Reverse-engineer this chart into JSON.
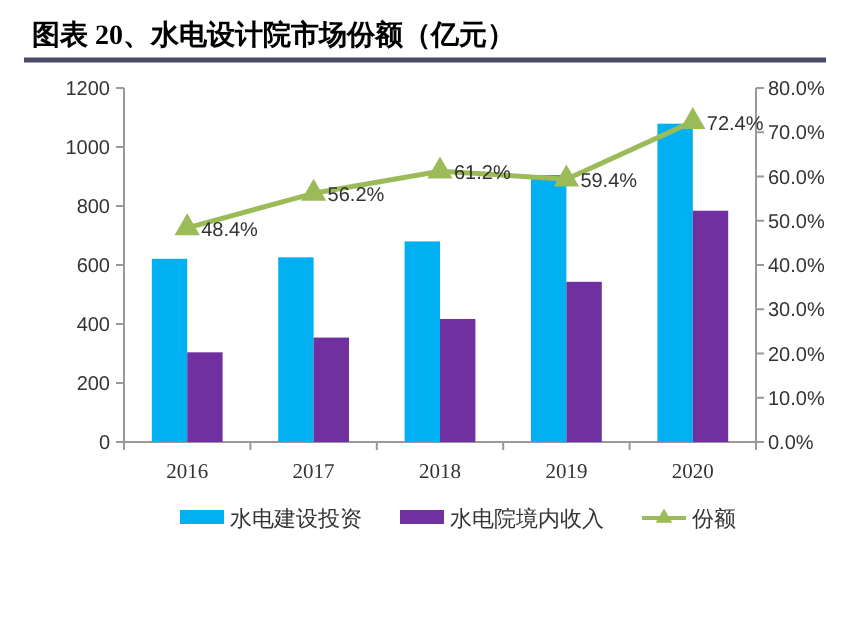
{
  "chart_data": {
    "type": "bar",
    "title": "图表 20、水电设计院市场份额（亿元）",
    "categories": [
      "2016",
      "2017",
      "2018",
      "2019",
      "2020"
    ],
    "series": [
      {
        "name": "水电建设投资",
        "color": "#00b0f0",
        "values": [
          621,
          626,
          680,
          905,
          1079
        ]
      },
      {
        "name": "水电院境内收入",
        "color": "#7030a0",
        "values": [
          304,
          354,
          417,
          543,
          784
        ]
      },
      {
        "name": "份额",
        "type": "line",
        "axis": "y2",
        "color": "#9bbb59",
        "marker": "triangle",
        "values": [
          48.4,
          56.2,
          61.2,
          59.4,
          72.4
        ],
        "value_labels": [
          "48.4%",
          "56.2%",
          "61.2%",
          "59.4%",
          "72.4%"
        ]
      }
    ],
    "ylim": [
      0,
      1200
    ],
    "yticks": [
      0,
      200,
      400,
      600,
      800,
      1000,
      1200
    ],
    "y2lim": [
      0,
      80
    ],
    "y2ticks": [
      {
        "value": 0,
        "label": "0.0%"
      },
      {
        "value": 10,
        "label": "10.0%"
      },
      {
        "value": 20,
        "label": "20.0%"
      },
      {
        "value": 30,
        "label": "30.0%"
      },
      {
        "value": 40,
        "label": "40.0%"
      },
      {
        "value": 50,
        "label": "50.0%"
      },
      {
        "value": 60,
        "label": "60.0%"
      },
      {
        "value": 70,
        "label": "70.0%"
      },
      {
        "value": 80,
        "label": "80.0%"
      }
    ],
    "grid": false,
    "legend": "bottom"
  }
}
